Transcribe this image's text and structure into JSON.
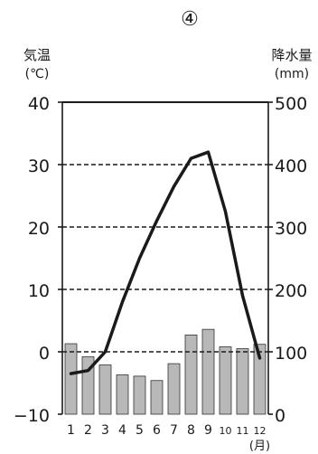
{
  "figure_label": "④",
  "chart_data": {
    "type": "bar+line",
    "x_axis": {
      "categories": [
        "1",
        "2",
        "3",
        "4",
        "5",
        "6",
        "7",
        "8",
        "9",
        "10",
        "11",
        "12"
      ],
      "unit_label": "(月)"
    },
    "y_left": {
      "label": "気温",
      "unit": "(℃)",
      "range": [
        -10,
        40
      ],
      "ticks": [
        "40",
        "30",
        "20",
        "10",
        "0",
        "−10"
      ],
      "tick_values": [
        40,
        30,
        20,
        10,
        0,
        -10
      ]
    },
    "y_right": {
      "label": "降水量",
      "unit": "(mm)",
      "range": [
        0,
        500
      ],
      "ticks": [
        "500",
        "400",
        "300",
        "200",
        "100",
        "0"
      ],
      "tick_values": [
        500,
        400,
        300,
        200,
        100,
        0
      ]
    },
    "gridlines": [
      400,
      300,
      200,
      100
    ],
    "series": [
      {
        "kind": "bar",
        "axis": "right",
        "values": [
          113,
          92,
          79,
          63,
          61,
          54,
          81,
          127,
          136,
          108,
          105,
          112
        ],
        "color": "#b8b8b8"
      },
      {
        "kind": "line",
        "axis": "left",
        "values": [
          -3.5,
          -3,
          0,
          8,
          15,
          21,
          26.5,
          31,
          32,
          22.5,
          9,
          -1
        ],
        "color": "#1a1a1a"
      }
    ]
  }
}
